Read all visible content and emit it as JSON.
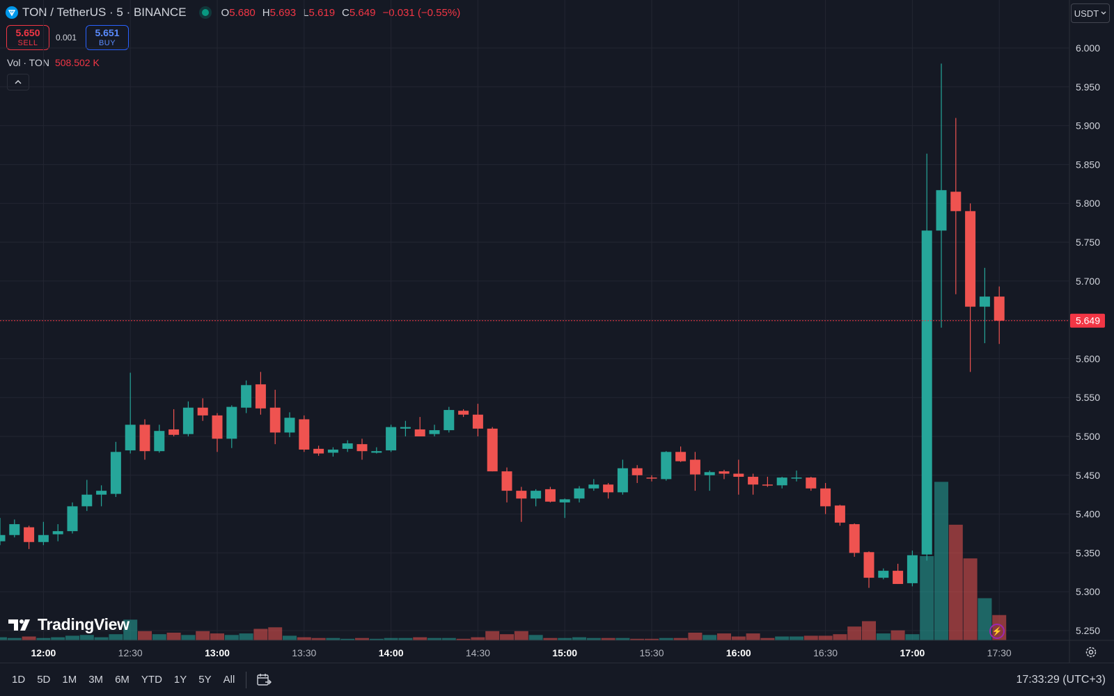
{
  "header": {
    "symbol": "TON / TetherUS · 5 · BINANCE",
    "open_key": "O",
    "open": "5.680",
    "high_key": "H",
    "high": "5.693",
    "low_key": "L",
    "low": "5.619",
    "close_key": "C",
    "close": "5.649",
    "change": "−0.031 (−0.55%)"
  },
  "trade": {
    "sell_price": "5.650",
    "sell_label": "SELL",
    "spread": "0.001",
    "buy_price": "5.651",
    "buy_label": "BUY"
  },
  "volume_legend": {
    "label": "Vol · TON",
    "value": "508.502 K"
  },
  "currency": "USDT",
  "last_price_label": "5.649",
  "range_buttons": [
    "1D",
    "5D",
    "1M",
    "3M",
    "6M",
    "YTD",
    "1Y",
    "5Y",
    "All"
  ],
  "clock": "17:33:29 (UTC+3)",
  "brand": "TradingView",
  "colors": {
    "up": "#26a69a",
    "down": "#ef5350",
    "background": "#151924",
    "grid": "#232632",
    "last_price": "#f23645"
  },
  "chart_data": {
    "type": "candlestick",
    "interval": "5m",
    "ylim": [
      5.23,
      6.05
    ],
    "y_ticks": [
      5.25,
      5.3,
      5.35,
      5.4,
      5.45,
      5.5,
      5.55,
      5.6,
      5.65,
      5.7,
      5.75,
      5.8,
      5.85,
      5.9,
      5.95,
      6.0
    ],
    "y_tick_labels": [
      "5.250",
      "5.300",
      "5.350",
      "5.400",
      "5.450",
      "5.500",
      "5.550",
      "5.600",
      "5.650",
      "5.700",
      "5.750",
      "5.800",
      "5.850",
      "5.900",
      "5.950",
      "6.000"
    ],
    "x_ticks": [
      {
        "label": "12:00",
        "index": 3,
        "bold": true
      },
      {
        "label": "12:30",
        "index": 9,
        "bold": false
      },
      {
        "label": "13:00",
        "index": 15,
        "bold": true
      },
      {
        "label": "13:30",
        "index": 21,
        "bold": false
      },
      {
        "label": "14:00",
        "index": 27,
        "bold": true
      },
      {
        "label": "14:30",
        "index": 33,
        "bold": false
      },
      {
        "label": "15:00",
        "index": 39,
        "bold": true
      },
      {
        "label": "15:30",
        "index": 45,
        "bold": false
      },
      {
        "label": "16:00",
        "index": 51,
        "bold": true
      },
      {
        "label": "16:30",
        "index": 57,
        "bold": false
      },
      {
        "label": "17:00",
        "index": 63,
        "bold": true
      },
      {
        "label": "17:30",
        "index": 69,
        "bold": false
      }
    ],
    "last_price": 5.649,
    "candles": [
      {
        "o": 5.365,
        "h": 5.395,
        "l": 5.36,
        "c": 5.373,
        "v": 4
      },
      {
        "o": 5.373,
        "h": 5.393,
        "l": 5.37,
        "c": 5.387,
        "v": 3
      },
      {
        "o": 5.383,
        "h": 5.385,
        "l": 5.355,
        "c": 5.364,
        "v": 5
      },
      {
        "o": 5.364,
        "h": 5.39,
        "l": 5.36,
        "c": 5.373,
        "v": 3
      },
      {
        "o": 5.374,
        "h": 5.387,
        "l": 5.365,
        "c": 5.378,
        "v": 4
      },
      {
        "o": 5.378,
        "h": 5.415,
        "l": 5.375,
        "c": 5.41,
        "v": 6
      },
      {
        "o": 5.41,
        "h": 5.444,
        "l": 5.404,
        "c": 5.425,
        "v": 7
      },
      {
        "o": 5.425,
        "h": 5.437,
        "l": 5.41,
        "c": 5.43,
        "v": 4
      },
      {
        "o": 5.426,
        "h": 5.493,
        "l": 5.422,
        "c": 5.48,
        "v": 8
      },
      {
        "o": 5.482,
        "h": 5.582,
        "l": 5.478,
        "c": 5.515,
        "v": 27
      },
      {
        "o": 5.515,
        "h": 5.522,
        "l": 5.47,
        "c": 5.481,
        "v": 12
      },
      {
        "o": 5.481,
        "h": 5.515,
        "l": 5.479,
        "c": 5.507,
        "v": 8
      },
      {
        "o": 5.509,
        "h": 5.535,
        "l": 5.5,
        "c": 5.502,
        "v": 10
      },
      {
        "o": 5.503,
        "h": 5.545,
        "l": 5.5,
        "c": 5.537,
        "v": 7
      },
      {
        "o": 5.537,
        "h": 5.549,
        "l": 5.52,
        "c": 5.527,
        "v": 12
      },
      {
        "o": 5.527,
        "h": 5.53,
        "l": 5.48,
        "c": 5.497,
        "v": 9
      },
      {
        "o": 5.497,
        "h": 5.54,
        "l": 5.485,
        "c": 5.538,
        "v": 7
      },
      {
        "o": 5.537,
        "h": 5.572,
        "l": 5.53,
        "c": 5.566,
        "v": 9
      },
      {
        "o": 5.567,
        "h": 5.583,
        "l": 5.528,
        "c": 5.536,
        "v": 15
      },
      {
        "o": 5.537,
        "h": 5.56,
        "l": 5.49,
        "c": 5.505,
        "v": 17
      },
      {
        "o": 5.505,
        "h": 5.531,
        "l": 5.499,
        "c": 5.524,
        "v": 6
      },
      {
        "o": 5.522,
        "h": 5.527,
        "l": 5.48,
        "c": 5.483,
        "v": 4
      },
      {
        "o": 5.484,
        "h": 5.488,
        "l": 5.475,
        "c": 5.478,
        "v": 3
      },
      {
        "o": 5.479,
        "h": 5.486,
        "l": 5.474,
        "c": 5.483,
        "v": 3
      },
      {
        "o": 5.484,
        "h": 5.495,
        "l": 5.48,
        "c": 5.491,
        "v": 2
      },
      {
        "o": 5.49,
        "h": 5.497,
        "l": 5.47,
        "c": 5.481,
        "v": 3
      },
      {
        "o": 5.479,
        "h": 5.486,
        "l": 5.478,
        "c": 5.481,
        "v": 2
      },
      {
        "o": 5.482,
        "h": 5.515,
        "l": 5.48,
        "c": 5.512,
        "v": 3
      },
      {
        "o": 5.51,
        "h": 5.52,
        "l": 5.5,
        "c": 5.512,
        "v": 3
      },
      {
        "o": 5.509,
        "h": 5.525,
        "l": 5.505,
        "c": 5.5,
        "v": 4
      },
      {
        "o": 5.503,
        "h": 5.515,
        "l": 5.5,
        "c": 5.508,
        "v": 3
      },
      {
        "o": 5.508,
        "h": 5.538,
        "l": 5.505,
        "c": 5.534,
        "v": 3
      },
      {
        "o": 5.533,
        "h": 5.535,
        "l": 5.525,
        "c": 5.528,
        "v": 2
      },
      {
        "o": 5.528,
        "h": 5.542,
        "l": 5.5,
        "c": 5.51,
        "v": 4
      },
      {
        "o": 5.51,
        "h": 5.512,
        "l": 5.455,
        "c": 5.455,
        "v": 12
      },
      {
        "o": 5.455,
        "h": 5.46,
        "l": 5.415,
        "c": 5.43,
        "v": 8
      },
      {
        "o": 5.43,
        "h": 5.435,
        "l": 5.39,
        "c": 5.42,
        "v": 12
      },
      {
        "o": 5.42,
        "h": 5.432,
        "l": 5.41,
        "c": 5.43,
        "v": 7
      },
      {
        "o": 5.432,
        "h": 5.435,
        "l": 5.415,
        "c": 5.416,
        "v": 3
      },
      {
        "o": 5.415,
        "h": 5.42,
        "l": 5.395,
        "c": 5.419,
        "v": 3
      },
      {
        "o": 5.42,
        "h": 5.436,
        "l": 5.415,
        "c": 5.433,
        "v": 4
      },
      {
        "o": 5.433,
        "h": 5.445,
        "l": 5.43,
        "c": 5.438,
        "v": 3
      },
      {
        "o": 5.438,
        "h": 5.44,
        "l": 5.42,
        "c": 5.428,
        "v": 3
      },
      {
        "o": 5.428,
        "h": 5.47,
        "l": 5.425,
        "c": 5.459,
        "v": 3
      },
      {
        "o": 5.459,
        "h": 5.463,
        "l": 5.44,
        "c": 5.45,
        "v": 2
      },
      {
        "o": 5.447,
        "h": 5.45,
        "l": 5.442,
        "c": 5.446,
        "v": 2
      },
      {
        "o": 5.445,
        "h": 5.481,
        "l": 5.443,
        "c": 5.48,
        "v": 3
      },
      {
        "o": 5.48,
        "h": 5.487,
        "l": 5.467,
        "c": 5.468,
        "v": 3
      },
      {
        "o": 5.47,
        "h": 5.48,
        "l": 5.43,
        "c": 5.451,
        "v": 10
      },
      {
        "o": 5.45,
        "h": 5.456,
        "l": 5.43,
        "c": 5.454,
        "v": 7
      },
      {
        "o": 5.455,
        "h": 5.457,
        "l": 5.445,
        "c": 5.452,
        "v": 9
      },
      {
        "o": 5.452,
        "h": 5.47,
        "l": 5.425,
        "c": 5.448,
        "v": 5
      },
      {
        "o": 5.448,
        "h": 5.452,
        "l": 5.425,
        "c": 5.438,
        "v": 9
      },
      {
        "o": 5.438,
        "h": 5.448,
        "l": 5.435,
        "c": 5.437,
        "v": 3
      },
      {
        "o": 5.437,
        "h": 5.448,
        "l": 5.433,
        "c": 5.447,
        "v": 5
      },
      {
        "o": 5.446,
        "h": 5.456,
        "l": 5.442,
        "c": 5.447,
        "v": 5
      },
      {
        "o": 5.447,
        "h": 5.448,
        "l": 5.43,
        "c": 5.433,
        "v": 6
      },
      {
        "o": 5.433,
        "h": 5.44,
        "l": 5.4,
        "c": 5.41,
        "v": 6
      },
      {
        "o": 5.411,
        "h": 5.412,
        "l": 5.385,
        "c": 5.389,
        "v": 8
      },
      {
        "o": 5.387,
        "h": 5.388,
        "l": 5.345,
        "c": 5.35,
        "v": 18
      },
      {
        "o": 5.351,
        "h": 5.352,
        "l": 5.305,
        "c": 5.318,
        "v": 25
      },
      {
        "o": 5.318,
        "h": 5.33,
        "l": 5.316,
        "c": 5.327,
        "v": 9
      },
      {
        "o": 5.327,
        "h": 5.336,
        "l": 5.31,
        "c": 5.31,
        "v": 13
      },
      {
        "o": 5.311,
        "h": 5.353,
        "l": 5.307,
        "c": 5.347,
        "v": 8
      },
      {
        "o": 5.348,
        "h": 5.864,
        "l": 5.34,
        "c": 5.765,
        "v": 110
      },
      {
        "o": 5.765,
        "h": 5.98,
        "l": 5.64,
        "c": 5.817,
        "v": 207
      },
      {
        "o": 5.815,
        "h": 5.91,
        "l": 5.683,
        "c": 5.79,
        "v": 151
      },
      {
        "o": 5.79,
        "h": 5.8,
        "l": 5.583,
        "c": 5.667,
        "v": 107
      },
      {
        "o": 5.667,
        "h": 5.717,
        "l": 5.62,
        "c": 5.68,
        "v": 55
      },
      {
        "o": 5.68,
        "h": 5.693,
        "l": 5.619,
        "c": 5.649,
        "v": 33
      }
    ]
  }
}
